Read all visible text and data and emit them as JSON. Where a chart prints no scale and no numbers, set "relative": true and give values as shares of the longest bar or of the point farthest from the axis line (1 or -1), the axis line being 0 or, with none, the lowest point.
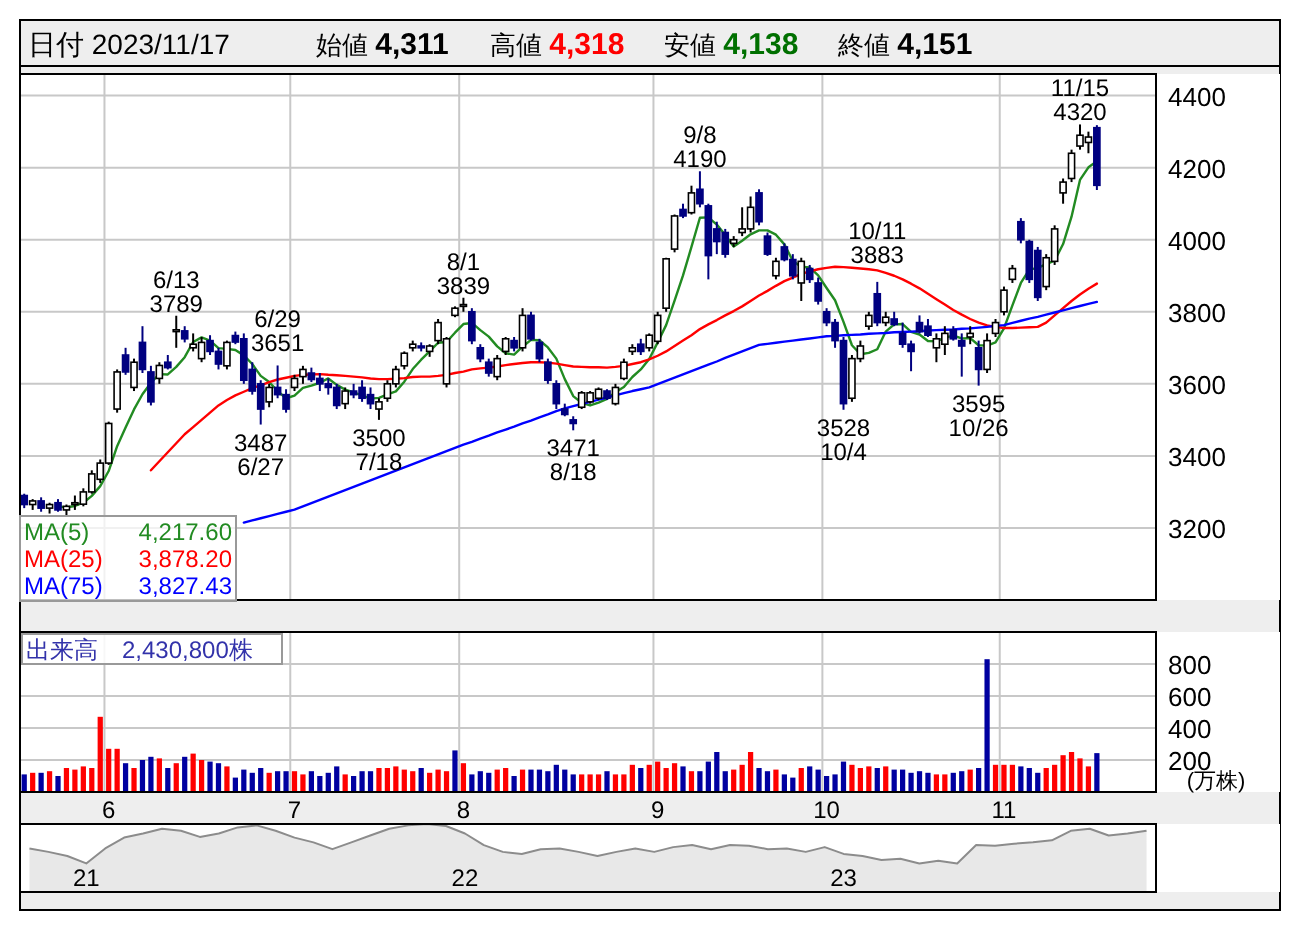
{
  "chart_data": [
    {
      "type": "candlestick",
      "title": "日付 2023/11/17",
      "grid": true,
      "tick_labels": "y",
      "legend": "bottom left",
      "ylim": [
        3000,
        4460
      ],
      "yticks": [
        3200,
        3400,
        3600,
        3800,
        4000,
        4200,
        4400
      ],
      "categories": [
        null,
        null,
        null,
        null,
        null,
        null,
        null,
        null,
        null,
        null,
        "6",
        null,
        null,
        null,
        null,
        null,
        null,
        null,
        null,
        null,
        null,
        null,
        null,
        null,
        null,
        null,
        null,
        null,
        null,
        null,
        null,
        null,
        "7",
        null,
        null,
        null,
        null,
        null,
        null,
        null,
        null,
        null,
        null,
        null,
        null,
        null,
        null,
        null,
        null,
        null,
        null,
        null,
        "8",
        null,
        null,
        null,
        null,
        null,
        null,
        null,
        null,
        null,
        null,
        null,
        null,
        null,
        null,
        null,
        null,
        null,
        null,
        null,
        null,
        null,
        null,
        "9",
        null,
        null,
        null,
        null,
        null,
        null,
        null,
        null,
        null,
        null,
        null,
        null,
        null,
        null,
        null,
        null,
        null,
        null,
        null,
        "10",
        null,
        null,
        null,
        null,
        null,
        null,
        null,
        null,
        null,
        null,
        null,
        null,
        null,
        null,
        null,
        null,
        null,
        null,
        null,
        null,
        "11",
        null,
        null,
        null,
        null,
        null,
        null,
        null,
        null,
        null,
        null,
        null
      ],
      "ohlc": [
        [
          3290,
          3295,
          3255,
          3265
        ],
        [
          3265,
          3280,
          3250,
          3275
        ],
        [
          3275,
          3285,
          3245,
          3255
        ],
        [
          3255,
          3270,
          3240,
          3265
        ],
        [
          3270,
          3280,
          3245,
          3250
        ],
        [
          3250,
          3265,
          3235,
          3260
        ],
        [
          3265,
          3290,
          3250,
          3270
        ],
        [
          3266,
          3310,
          3260,
          3300
        ],
        [
          3300,
          3360,
          3295,
          3350
        ],
        [
          3335,
          3390,
          3325,
          3380
        ],
        [
          3380,
          3495,
          3375,
          3490
        ],
        [
          3530,
          3640,
          3520,
          3633
        ],
        [
          3680,
          3700,
          3625,
          3633
        ],
        [
          3590,
          3670,
          3580,
          3660
        ],
        [
          3715,
          3760,
          3630,
          3640
        ],
        [
          3633,
          3650,
          3540,
          3550
        ],
        [
          3615,
          3660,
          3600,
          3651
        ],
        [
          3660,
          3680,
          3640,
          3645
        ],
        [
          3745,
          3789,
          3700,
          3750
        ],
        [
          3747,
          3760,
          3715,
          3725
        ],
        [
          3700,
          3740,
          3690,
          3710
        ],
        [
          3670,
          3730,
          3660,
          3715
        ],
        [
          3720,
          3735,
          3680,
          3690
        ],
        [
          3690,
          3700,
          3640,
          3655
        ],
        [
          3650,
          3720,
          3640,
          3715
        ],
        [
          3734,
          3745,
          3710,
          3716
        ],
        [
          3725,
          3740,
          3600,
          3610
        ],
        [
          3640,
          3660,
          3570,
          3580
        ],
        [
          3600,
          3610,
          3487,
          3530
        ],
        [
          3550,
          3600,
          3535,
          3590
        ],
        [
          3590,
          3651,
          3560,
          3570
        ],
        [
          3570,
          3585,
          3520,
          3530
        ],
        [
          3590,
          3625,
          3580,
          3615
        ],
        [
          3620,
          3650,
          3600,
          3640
        ],
        [
          3630,
          3645,
          3605,
          3612
        ],
        [
          3615,
          3630,
          3580,
          3600
        ],
        [
          3600,
          3615,
          3570,
          3590
        ],
        [
          3590,
          3600,
          3530,
          3540
        ],
        [
          3545,
          3590,
          3530,
          3580
        ],
        [
          3580,
          3600,
          3560,
          3570
        ],
        [
          3590,
          3610,
          3550,
          3560
        ],
        [
          3570,
          3590,
          3530,
          3545
        ],
        [
          3530,
          3560,
          3500,
          3550
        ],
        [
          3560,
          3610,
          3550,
          3600
        ],
        [
          3600,
          3650,
          3590,
          3640
        ],
        [
          3650,
          3690,
          3640,
          3685
        ],
        [
          3700,
          3720,
          3690,
          3710
        ],
        [
          3705,
          3715,
          3690,
          3700
        ],
        [
          3690,
          3710,
          3675,
          3705
        ],
        [
          3720,
          3780,
          3710,
          3770
        ],
        [
          3600,
          3730,
          3590,
          3725
        ],
        [
          3790,
          3815,
          3785,
          3810
        ],
        [
          3815,
          3839,
          3800,
          3820
        ],
        [
          3800,
          3810,
          3710,
          3720
        ],
        [
          3700,
          3710,
          3660,
          3670
        ],
        [
          3660,
          3670,
          3620,
          3630
        ],
        [
          3620,
          3680,
          3610,
          3670
        ],
        [
          3690,
          3730,
          3680,
          3725
        ],
        [
          3720,
          3730,
          3690,
          3700
        ],
        [
          3700,
          3810,
          3690,
          3790
        ],
        [
          3790,
          3800,
          3720,
          3725
        ],
        [
          3715,
          3725,
          3660,
          3670
        ],
        [
          3660,
          3670,
          3600,
          3610
        ],
        [
          3600,
          3610,
          3530,
          3545
        ],
        [
          3530,
          3545,
          3510,
          3515
        ],
        [
          3500,
          3510,
          3471,
          3490
        ],
        [
          3535,
          3580,
          3530,
          3575
        ],
        [
          3550,
          3580,
          3545,
          3575
        ],
        [
          3560,
          3590,
          3555,
          3585
        ],
        [
          3580,
          3585,
          3555,
          3560
        ],
        [
          3545,
          3600,
          3540,
          3590
        ],
        [
          3615,
          3670,
          3610,
          3660
        ],
        [
          3690,
          3710,
          3680,
          3700
        ],
        [
          3710,
          3725,
          3680,
          3690
        ],
        [
          3700,
          3740,
          3690,
          3735
        ],
        [
          3718,
          3800,
          3710,
          3790
        ],
        [
          3810,
          3950,
          3800,
          3947
        ],
        [
          3974,
          4070,
          3965,
          4066
        ],
        [
          4084,
          4100,
          4060,
          4066
        ],
        [
          4075,
          4150,
          4070,
          4130
        ],
        [
          4140,
          4190,
          4090,
          4100
        ],
        [
          4094,
          4100,
          3890,
          3956
        ],
        [
          4030,
          4050,
          3960,
          3995
        ],
        [
          4020,
          4030,
          3950,
          3960
        ],
        [
          3990,
          4010,
          3980,
          4000
        ],
        [
          4020,
          4090,
          4010,
          4030
        ],
        [
          4030,
          4120,
          4020,
          4090
        ],
        [
          4130,
          4140,
          4040,
          4050
        ],
        [
          4010,
          4020,
          3955,
          3960
        ],
        [
          3900,
          3950,
          3890,
          3940
        ],
        [
          3980,
          3990,
          3940,
          3945
        ],
        [
          3945,
          3960,
          3890,
          3900
        ],
        [
          3880,
          3950,
          3830,
          3940
        ],
        [
          3920,
          3930,
          3880,
          3890
        ],
        [
          3880,
          3895,
          3820,
          3830
        ],
        [
          3800,
          3810,
          3760,
          3770
        ],
        [
          3770,
          3780,
          3700,
          3720
        ],
        [
          3720,
          3730,
          3528,
          3545
        ],
        [
          3560,
          3680,
          3550,
          3670
        ],
        [
          3670,
          3720,
          3660,
          3705
        ],
        [
          3760,
          3800,
          3750,
          3790
        ],
        [
          3850,
          3883,
          3760,
          3770
        ],
        [
          3770,
          3800,
          3760,
          3785
        ],
        [
          3780,
          3800,
          3760,
          3765
        ],
        [
          3740,
          3770,
          3700,
          3710
        ],
        [
          3710,
          3720,
          3635,
          3690
        ],
        [
          3770,
          3790,
          3740,
          3745
        ],
        [
          3760,
          3780,
          3730,
          3735
        ],
        [
          3700,
          3740,
          3660,
          3725
        ],
        [
          3710,
          3760,
          3680,
          3740
        ],
        [
          3750,
          3760,
          3720,
          3725
        ],
        [
          3720,
          3740,
          3620,
          3705
        ],
        [
          3730,
          3760,
          3710,
          3740
        ],
        [
          3700,
          3720,
          3595,
          3640
        ],
        [
          3640,
          3740,
          3630,
          3720
        ],
        [
          3740,
          3780,
          3730,
          3770
        ],
        [
          3800,
          3870,
          3790,
          3860
        ],
        [
          3890,
          3930,
          3880,
          3920
        ],
        [
          4050,
          4060,
          3990,
          4000
        ],
        [
          3995,
          4000,
          3880,
          3890
        ],
        [
          3970,
          3980,
          3830,
          3840
        ],
        [
          3870,
          3960,
          3860,
          3950
        ],
        [
          3940,
          4040,
          3930,
          4030
        ],
        [
          4130,
          4170,
          4100,
          4160
        ],
        [
          4170,
          4250,
          4160,
          4240
        ],
        [
          4260,
          4320,
          4250,
          4290
        ],
        [
          4270,
          4300,
          4240,
          4285
        ],
        [
          4311,
          4318,
          4138,
          4151
        ]
      ],
      "series": [
        {
          "name": "MA(5)",
          "type": "line",
          "color": "#228b22",
          "values": [
            null,
            null,
            null,
            null,
            3260,
            3257,
            3261,
            3270,
            3289,
            3316,
            3358,
            3427,
            3479,
            3529,
            3571,
            3603,
            3627,
            3626,
            3647,
            3674,
            3716,
            3729,
            3720,
            3699,
            3697,
            3694,
            3679,
            3655,
            3622,
            3605,
            3580,
            3560,
            3567,
            3589,
            3595,
            3603,
            3615,
            3597,
            3584,
            3576,
            3568,
            3559,
            3561,
            3571,
            3579,
            3606,
            3641,
            3667,
            3690,
            3714,
            3716,
            3742,
            3766,
            3769,
            3749,
            3731,
            3704,
            3685,
            3681,
            3703,
            3722,
            3721,
            3701,
            3670,
            3613,
            3566,
            3547,
            3540,
            3548,
            3558,
            3577,
            3591,
            3619,
            3640,
            3669,
            3715,
            3763,
            3831,
            3901,
            3980,
            4061,
            4062,
            4042,
            4013,
            3981,
            3997,
            4015,
            4026,
            4026,
            4014,
            3987,
            3941,
            3925,
            3923,
            3901,
            3866,
            3832,
            3772,
            3707,
            3682,
            3686,
            3696,
            3745,
            3765,
            3766,
            3744,
            3737,
            3719,
            3718,
            3728,
            3734,
            3726,
            3727,
            3707,
            3706,
            3715,
            3754,
            3818,
            3880,
            3917,
            3922,
            3932,
            3942,
            3988,
            4064,
            4166,
            4201,
            4217.6
          ]
        },
        {
          "name": "MA(25)",
          "type": "line",
          "color": "#ff0000",
          "values": [
            null,
            null,
            null,
            null,
            null,
            null,
            null,
            null,
            null,
            null,
            null,
            null,
            null,
            null,
            null,
            3360,
            3385,
            3410,
            3435,
            3460,
            3480,
            3500,
            3520,
            3540,
            3555,
            3568,
            3578,
            3588,
            3596,
            3605,
            3612,
            3617,
            3622,
            3625,
            3626,
            3627,
            3625,
            3624,
            3622,
            3620,
            3618,
            3615,
            3613,
            3613,
            3614,
            3616,
            3619,
            3620,
            3620,
            3622,
            3625,
            3630,
            3634,
            3640,
            3643,
            3645,
            3648,
            3652,
            3655,
            3658,
            3660,
            3660,
            3659,
            3656,
            3652,
            3648,
            3647,
            3646,
            3646,
            3645,
            3647,
            3650,
            3655,
            3660,
            3668,
            3678,
            3690,
            3705,
            3720,
            3735,
            3752,
            3765,
            3777,
            3790,
            3802,
            3815,
            3830,
            3845,
            3858,
            3872,
            3885,
            3895,
            3905,
            3912,
            3918,
            3922,
            3925,
            3924,
            3922,
            3920,
            3918,
            3915,
            3908,
            3900,
            3890,
            3878,
            3865,
            3850,
            3835,
            3820,
            3805,
            3792,
            3780,
            3770,
            3762,
            3758,
            3755,
            3755,
            3756,
            3757,
            3758,
            3770,
            3790,
            3810,
            3830,
            3848,
            3864,
            3878.2
          ]
        },
        {
          "name": "MA(75)",
          "type": "line",
          "color": "#0000ff",
          "values": [
            null,
            null,
            null,
            null,
            null,
            null,
            null,
            null,
            null,
            null,
            null,
            null,
            null,
            null,
            null,
            null,
            null,
            null,
            null,
            null,
            null,
            null,
            null,
            null,
            null,
            null,
            3215,
            3221,
            3227,
            3233,
            3239,
            3245,
            3251,
            3260,
            3269,
            3278,
            3287,
            3296,
            3305,
            3314,
            3323,
            3332,
            3341,
            3350,
            3359,
            3368,
            3377,
            3386,
            3395,
            3404,
            3413,
            3422,
            3431,
            3439,
            3448,
            3456,
            3465,
            3473,
            3481,
            3490,
            3498,
            3507,
            3515,
            3524,
            3532,
            3538,
            3544,
            3550,
            3556,
            3562,
            3568,
            3574,
            3580,
            3585,
            3590,
            3599,
            3608,
            3617,
            3626,
            3635,
            3644,
            3653,
            3662,
            3672,
            3681,
            3690,
            3699,
            3708,
            3711,
            3714,
            3717,
            3720,
            3723,
            3726,
            3729,
            3732,
            3733,
            3735,
            3736,
            3737,
            3739,
            3740,
            3741,
            3743,
            3744,
            3745,
            3746,
            3748,
            3749,
            3750,
            3751,
            3753,
            3754,
            3756,
            3758,
            3761,
            3763,
            3769,
            3775,
            3781,
            3786,
            3792,
            3798,
            3804,
            3810,
            3816,
            3822,
            3827.43
          ]
        }
      ],
      "annotations": [
        "始値 4,311",
        "高値 4,318",
        "安値 4,138",
        "終値 4,151",
        "4,217.60",
        "3,878.20",
        "3,827.43",
        {
          "text": "6/13\n3789",
          "y": 3789
        },
        {
          "text": "3487\n6/27",
          "y": 3487
        },
        {
          "text": "6/29\n3651",
          "y": 3651
        },
        {
          "text": "3500\n7/18",
          "y": 3500
        },
        {
          "text": "8/1\n3839",
          "y": 3839
        },
        {
          "text": "3471\n8/18",
          "y": 3471
        },
        {
          "text": "9/8\n4190",
          "y": 4190
        },
        {
          "text": "3528\n10/4",
          "y": 3528
        },
        {
          "text": "10/11\n3883",
          "y": 3883
        },
        {
          "text": "3595\n10/26",
          "y": 3595
        },
        {
          "text": "11/15\n4320",
          "y": 4320
        }
      ]
    },
    {
      "type": "bar",
      "grid": true,
      "ylabel": "(万株)",
      "ylim": [
        0,
        1000
      ],
      "yticks": [
        200,
        400,
        600,
        800
      ],
      "categories": [
        null,
        null,
        null,
        null,
        null,
        null,
        null,
        null,
        null,
        null,
        "6",
        null,
        null,
        null,
        null,
        null,
        null,
        null,
        null,
        null,
        null,
        null,
        null,
        null,
        null,
        null,
        null,
        null,
        null,
        null,
        null,
        null,
        "7",
        null,
        null,
        null,
        null,
        null,
        null,
        null,
        null,
        null,
        null,
        null,
        null,
        null,
        null,
        null,
        null,
        null,
        null,
        null,
        "8",
        null,
        null,
        null,
        null,
        null,
        null,
        null,
        null,
        null,
        null,
        null,
        null,
        null,
        null,
        null,
        null,
        null,
        null,
        null,
        null,
        null,
        null,
        "9",
        null,
        null,
        null,
        null,
        null,
        null,
        null,
        null,
        null,
        null,
        null,
        null,
        null,
        null,
        null,
        null,
        null,
        null,
        null,
        "10",
        null,
        null,
        null,
        null,
        null,
        null,
        null,
        null,
        null,
        null,
        null,
        null,
        null,
        null,
        null,
        null,
        null,
        null,
        null,
        null,
        "11",
        null,
        null,
        null,
        null,
        null,
        null,
        null,
        null,
        null,
        null,
        null
      ],
      "values": [
        110,
        120,
        120,
        130,
        100,
        150,
        140,
        160,
        150,
        470,
        270,
        270,
        180,
        150,
        200,
        220,
        210,
        150,
        180,
        220,
        240,
        200,
        190,
        180,
        160,
        90,
        140,
        120,
        150,
        120,
        130,
        130,
        130,
        110,
        130,
        100,
        120,
        160,
        110,
        100,
        130,
        130,
        150,
        150,
        160,
        140,
        130,
        150,
        120,
        140,
        130,
        260,
        180,
        110,
        130,
        120,
        140,
        150,
        100,
        140,
        140,
        140,
        130,
        170,
        140,
        110,
        110,
        110,
        110,
        130,
        110,
        110,
        170,
        150,
        170,
        190,
        150,
        180,
        160,
        130,
        130,
        190,
        250,
        130,
        140,
        170,
        250,
        150,
        130,
        140,
        110,
        90,
        150,
        160,
        140,
        100,
        110,
        190,
        170,
        150,
        160,
        150,
        160,
        140,
        140,
        120,
        130,
        120,
        110,
        110,
        120,
        130,
        140,
        150,
        830,
        170,
        170,
        170,
        160,
        150,
        120,
        150,
        170,
        230,
        250,
        210,
        160,
        243
      ],
      "colors": [
        "#0000a0",
        "#ff0000",
        "#0000a0",
        "#ff0000",
        "#0000a0",
        "#ff0000",
        "#ff0000",
        "#ff0000",
        "#ff0000",
        "#ff0000",
        "#ff0000",
        "#ff0000",
        "#0000a0",
        "#ff0000",
        "#0000a0",
        "#0000a0",
        "#ff0000",
        "#0000a0",
        "#ff0000",
        "#0000a0",
        "#ff0000",
        "#ff0000",
        "#0000a0",
        "#0000a0",
        "#ff0000",
        "#0000a0",
        "#0000a0",
        "#0000a0",
        "#0000a0",
        "#ff0000",
        "#0000a0",
        "#0000a0",
        "#ff0000",
        "#ff0000",
        "#0000a0",
        "#0000a0",
        "#0000a0",
        "#0000a0",
        "#ff0000",
        "#0000a0",
        "#0000a0",
        "#0000a0",
        "#ff0000",
        "#ff0000",
        "#ff0000",
        "#ff0000",
        "#ff0000",
        "#0000a0",
        "#ff0000",
        "#ff0000",
        "#ff0000",
        "#0000a0",
        "#ff0000",
        "#0000a0",
        "#0000a0",
        "#0000a0",
        "#ff0000",
        "#ff0000",
        "#0000a0",
        "#ff0000",
        "#0000a0",
        "#0000a0",
        "#0000a0",
        "#0000a0",
        "#0000a0",
        "#0000a0",
        "#ff0000",
        "#ff0000",
        "#ff0000",
        "#0000a0",
        "#ff0000",
        "#ff0000",
        "#ff0000",
        "#0000a0",
        "#ff0000",
        "#ff0000",
        "#ff0000",
        "#ff0000",
        "#0000a0",
        "#ff0000",
        "#0000a0",
        "#0000a0",
        "#0000a0",
        "#0000a0",
        "#ff0000",
        "#ff0000",
        "#ff0000",
        "#0000a0",
        "#0000a0",
        "#ff0000",
        "#0000a0",
        "#0000a0",
        "#ff0000",
        "#0000a0",
        "#0000a0",
        "#0000a0",
        "#0000a0",
        "#0000a0",
        "#ff0000",
        "#ff0000",
        "#ff0000",
        "#0000a0",
        "#ff0000",
        "#0000a0",
        "#0000a0",
        "#0000a0",
        "#0000a0",
        "#0000a0",
        "#ff0000",
        "#ff0000",
        "#0000a0",
        "#0000a0",
        "#ff0000",
        "#0000a0",
        "#0000a0",
        "#ff0000",
        "#ff0000",
        "#ff0000",
        "#0000a0",
        "#0000a0",
        "#0000a0",
        "#ff0000",
        "#ff0000",
        "#ff0000",
        "#ff0000",
        "#ff0000",
        "#ff0000",
        "#0000a0"
      ],
      "annotations": [
        "出来高　2,430,800株"
      ]
    },
    {
      "type": "area",
      "relative": true,
      "tick_labels": "x",
      "categories": [
        null,
        null,
        null,
        "21",
        null,
        null,
        null,
        null,
        null,
        null,
        null,
        null,
        null,
        null,
        null,
        null,
        null,
        null,
        null,
        null,
        null,
        null,
        null,
        "22",
        null,
        null,
        null,
        null,
        null,
        null,
        null,
        null,
        null,
        null,
        null,
        null,
        null,
        null,
        null,
        null,
        null,
        null,
        null,
        "23",
        null,
        null,
        null,
        null,
        null,
        null,
        null,
        null,
        null,
        null,
        null,
        null,
        null,
        null,
        null,
        null
      ],
      "series": [
        {
          "color": "#8c8c8c",
          "values": [
            0.64,
            0.59,
            0.53,
            0.42,
            0.64,
            0.8,
            0.86,
            0.93,
            0.9,
            0.81,
            0.86,
            0.95,
            0.98,
            0.9,
            0.8,
            0.73,
            0.63,
            0.73,
            0.83,
            0.93,
            0.98,
            1,
            0.97,
            0.86,
            0.69,
            0.59,
            0.56,
            0.63,
            0.64,
            0.59,
            0.53,
            0.59,
            0.64,
            0.59,
            0.66,
            0.69,
            0.63,
            0.69,
            0.68,
            0.63,
            0.64,
            0.59,
            0.66,
            0.56,
            0.53,
            0.47,
            0.49,
            0.42,
            0.46,
            0.42,
            0.69,
            0.68,
            0.71,
            0.73,
            0.76,
            0.9,
            0.93,
            0.83,
            0.86,
            0.9
          ]
        }
      ]
    }
  ]
}
